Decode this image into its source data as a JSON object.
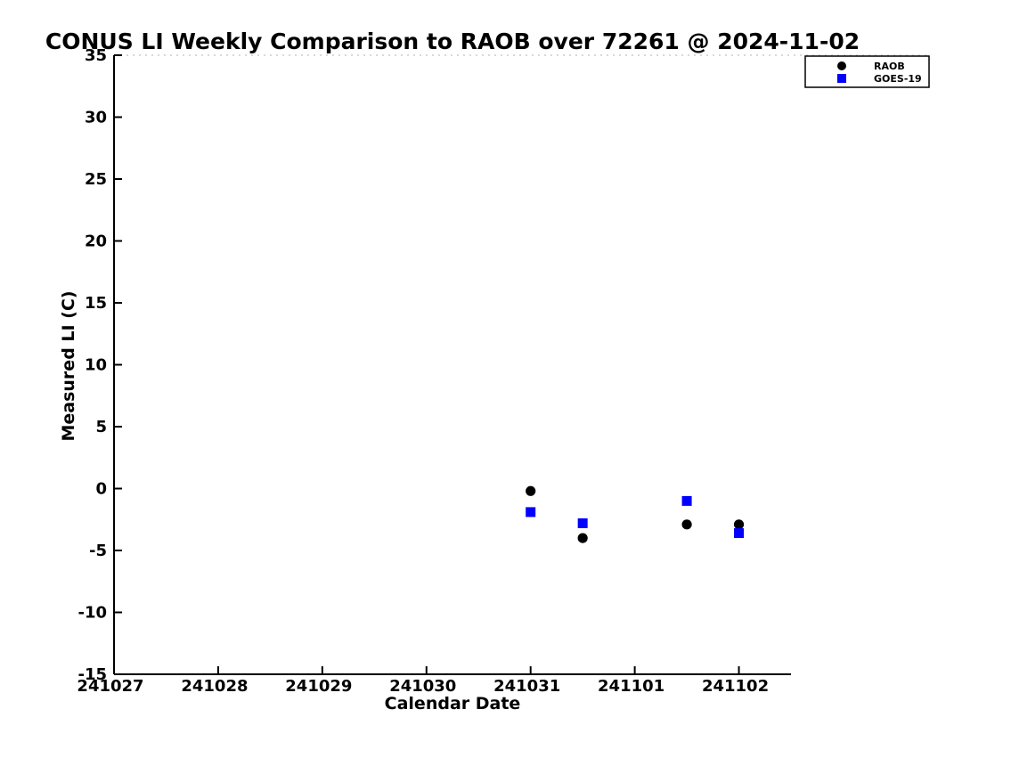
{
  "chart_data": {
    "type": "scatter",
    "title": "CONUS LI Weekly Comparison to RAOB over 72261 @ 2024-11-02",
    "xlabel": "Calendar Date",
    "ylabel": "Measured LI (C)",
    "x_tick_labels": [
      "241027",
      "241028",
      "241029",
      "241030",
      "241031",
      "241101",
      "241102"
    ],
    "x_tick_positions": [
      0,
      1,
      2,
      3,
      4,
      5,
      6
    ],
    "xlim": [
      0,
      6.5
    ],
    "y_ticks": [
      35,
      30,
      25,
      20,
      15,
      10,
      5,
      0,
      -5,
      -10,
      -15
    ],
    "ylim": [
      -15,
      35
    ],
    "grid": false,
    "colors": {
      "raob": "#000000",
      "goes19": "#0000ff",
      "axis": "#000000",
      "top_border": "#c0c0c0",
      "background": "#ffffff"
    },
    "legend": {
      "position": "top-right",
      "entries": [
        {
          "label": "RAOB",
          "marker": "circle",
          "color": "#000000"
        },
        {
          "label": "GOES-19",
          "marker": "square",
          "color": "#0000ff"
        }
      ]
    },
    "series": [
      {
        "name": "RAOB",
        "marker": "circle",
        "color": "#000000",
        "points": [
          {
            "x_day": 4.0,
            "date": "241031",
            "y": -0.2
          },
          {
            "x_day": 4.5,
            "date": "241031",
            "y": -4.0
          },
          {
            "x_day": 5.5,
            "date": "241101",
            "y": -2.9
          },
          {
            "x_day": 6.0,
            "date": "241102",
            "y": -2.9
          }
        ]
      },
      {
        "name": "GOES-19",
        "marker": "square",
        "color": "#0000ff",
        "points": [
          {
            "x_day": 4.0,
            "date": "241031",
            "y": -1.9
          },
          {
            "x_day": 4.5,
            "date": "241031",
            "y": -2.8
          },
          {
            "x_day": 5.5,
            "date": "241101",
            "y": -1.0
          },
          {
            "x_day": 6.0,
            "date": "241102",
            "y": -3.6
          }
        ]
      }
    ]
  }
}
